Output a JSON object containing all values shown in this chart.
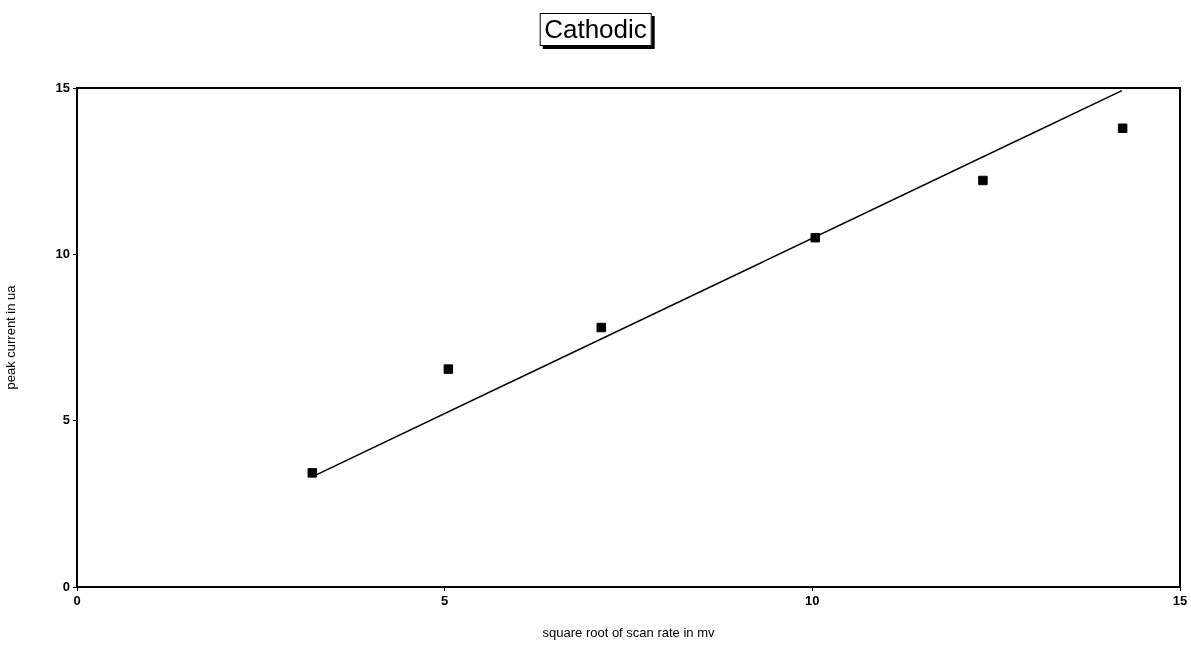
{
  "chart_data": {
    "type": "scatter",
    "title": "Cathodic",
    "xlabel": "square root of scan rate in mv",
    "ylabel": "peak current in ua",
    "xlim": [
      0,
      15
    ],
    "ylim": [
      0,
      15
    ],
    "xticks": [
      0,
      5,
      10,
      15
    ],
    "yticks": [
      0,
      5,
      10,
      15
    ],
    "grid": false,
    "legend": false,
    "marker": "square",
    "series": [
      {
        "type": "scatter",
        "color": "#000000",
        "x": [
          3.2,
          5.05,
          7.13,
          10.04,
          12.32,
          14.22
        ],
        "values": [
          3.43,
          6.55,
          7.8,
          10.5,
          12.22,
          13.79
        ]
      },
      {
        "type": "line",
        "color": "#000000",
        "marker": "none",
        "line_style": "solid",
        "x": [
          3.26,
          14.21
        ],
        "values": [
          3.38,
          14.92
        ]
      }
    ]
  }
}
